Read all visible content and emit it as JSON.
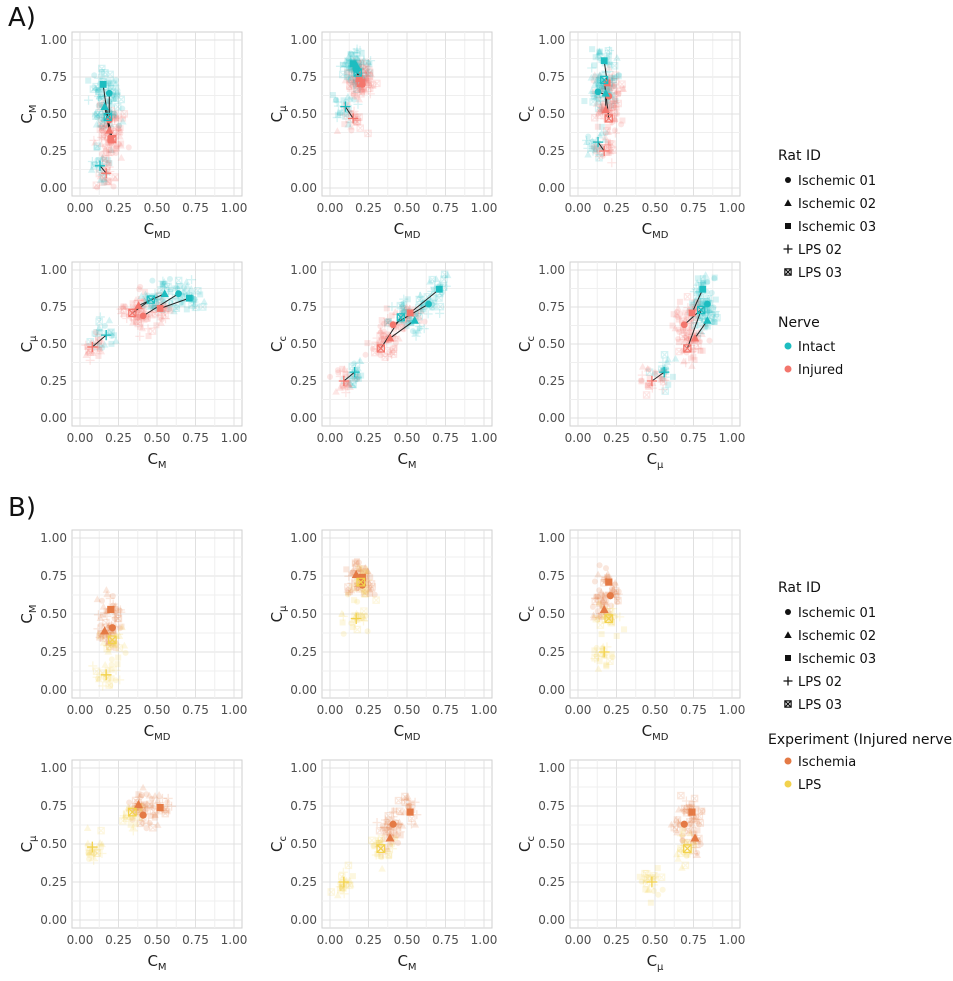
{
  "figure": {
    "panel_a_label": "A)",
    "panel_b_label": "B)"
  },
  "legend_a": {
    "rat_title": "Rat ID",
    "rats": [
      {
        "label": "Ischemic 01",
        "shape": "circle"
      },
      {
        "label": "Ischemic 02",
        "shape": "triangle"
      },
      {
        "label": "Ischemic 03",
        "shape": "square"
      },
      {
        "label": "LPS 02",
        "shape": "plus"
      },
      {
        "label": "LPS 03",
        "shape": "boxx"
      }
    ],
    "nerve_title": "Nerve",
    "nerves": [
      {
        "label": "Intact",
        "color": "#1dbdc0"
      },
      {
        "label": "Injured",
        "color": "#f3766d"
      }
    ]
  },
  "legend_b": {
    "rat_title": "Rat ID",
    "rats": [
      {
        "label": "Ischemic 01",
        "shape": "circle"
      },
      {
        "label": "Ischemic 02",
        "shape": "triangle"
      },
      {
        "label": "Ischemic 03",
        "shape": "square"
      },
      {
        "label": "LPS 02",
        "shape": "plus"
      },
      {
        "label": "LPS 03",
        "shape": "boxx"
      }
    ],
    "exp_title": "Experiment (Injured nerve)",
    "experiments": [
      {
        "label": "Ischemia",
        "color": "#e47a45"
      },
      {
        "label": "LPS",
        "color": "#f2d24d"
      }
    ]
  },
  "chart_data": {
    "type": "scatter",
    "xlim": [
      0,
      1
    ],
    "ylim": [
      0,
      1
    ],
    "ticks": [
      "0.00",
      "0.25",
      "0.50",
      "0.75",
      "1.00"
    ],
    "grid": true,
    "rats": [
      "Ischemic 01",
      "Ischemic 02",
      "Ischemic 03",
      "LPS 02",
      "LPS 03"
    ],
    "panels": [
      {
        "id": "A1",
        "group": "A",
        "x_main": "C",
        "x_sub": "MD",
        "y_main": "C",
        "y_sub": "M",
        "pairs": [
          [
            0.19,
            0.64,
            0.19,
            0.46
          ],
          [
            0.16,
            0.55,
            0.19,
            0.39
          ],
          [
            0.15,
            0.7,
            0.2,
            0.33
          ],
          [
            0.13,
            0.15,
            0.17,
            0.1
          ],
          [
            0.18,
            0.48,
            0.21,
            0.33
          ]
        ]
      },
      {
        "id": "A2",
        "group": "A",
        "x_main": "C",
        "x_sub": "MD",
        "y_main": "C",
        "y_sub": "μ",
        "pairs": [
          [
            0.17,
            0.8,
            0.21,
            0.7
          ],
          [
            0.17,
            0.83,
            0.19,
            0.74
          ],
          [
            0.15,
            0.84,
            0.19,
            0.74
          ],
          [
            0.1,
            0.55,
            0.15,
            0.47
          ],
          [
            0.18,
            0.78,
            0.2,
            0.71
          ]
        ]
      },
      {
        "id": "A3",
        "group": "A",
        "x_main": "C",
        "x_sub": "MD",
        "y_main": "C",
        "y_sub": "c",
        "pairs": [
          [
            0.13,
            0.65,
            0.2,
            0.62
          ],
          [
            0.18,
            0.64,
            0.18,
            0.53
          ],
          [
            0.17,
            0.86,
            0.19,
            0.71
          ],
          [
            0.13,
            0.31,
            0.17,
            0.25
          ],
          [
            0.17,
            0.73,
            0.2,
            0.47
          ]
        ]
      },
      {
        "id": "A4",
        "group": "A",
        "x_main": "C",
        "x_sub": "M",
        "y_main": "C",
        "y_sub": "μ",
        "pairs": [
          [
            0.64,
            0.84,
            0.41,
            0.69
          ],
          [
            0.55,
            0.84,
            0.38,
            0.76
          ],
          [
            0.71,
            0.81,
            0.52,
            0.74
          ],
          [
            0.17,
            0.56,
            0.08,
            0.48
          ],
          [
            0.46,
            0.8,
            0.34,
            0.71
          ]
        ]
      },
      {
        "id": "A5",
        "group": "A",
        "x_main": "C",
        "x_sub": "M",
        "y_main": "C",
        "y_sub": "c",
        "pairs": [
          [
            0.64,
            0.77,
            0.41,
            0.63
          ],
          [
            0.55,
            0.66,
            0.39,
            0.54
          ],
          [
            0.71,
            0.87,
            0.52,
            0.71
          ],
          [
            0.16,
            0.31,
            0.09,
            0.25
          ],
          [
            0.46,
            0.68,
            0.33,
            0.47
          ]
        ]
      },
      {
        "id": "A6",
        "group": "A",
        "x_main": "C",
        "x_sub": "μ",
        "y_main": "C",
        "y_sub": "c",
        "pairs": [
          [
            0.84,
            0.77,
            0.69,
            0.63
          ],
          [
            0.84,
            0.66,
            0.76,
            0.54
          ],
          [
            0.81,
            0.87,
            0.74,
            0.71
          ],
          [
            0.56,
            0.31,
            0.48,
            0.25
          ],
          [
            0.8,
            0.73,
            0.71,
            0.47
          ]
        ]
      },
      {
        "id": "B1",
        "group": "B",
        "x_main": "C",
        "x_sub": "MD",
        "y_main": "C",
        "y_sub": "M",
        "points": [
          [
            0.21,
            0.41,
            0
          ],
          [
            0.16,
            0.39,
            0
          ],
          [
            0.2,
            0.53,
            0
          ],
          [
            0.17,
            0.1,
            1
          ],
          [
            0.21,
            0.33,
            1
          ]
        ]
      },
      {
        "id": "B2",
        "group": "B",
        "x_main": "C",
        "x_sub": "MD",
        "y_main": "C",
        "y_sub": "μ",
        "points": [
          [
            0.21,
            0.69,
            0
          ],
          [
            0.17,
            0.76,
            0
          ],
          [
            0.21,
            0.74,
            0
          ],
          [
            0.17,
            0.47,
            1
          ],
          [
            0.2,
            0.71,
            1
          ]
        ]
      },
      {
        "id": "B3",
        "group": "B",
        "x_main": "C",
        "x_sub": "MD",
        "y_main": "C",
        "y_sub": "c",
        "points": [
          [
            0.21,
            0.62,
            0
          ],
          [
            0.17,
            0.53,
            0
          ],
          [
            0.2,
            0.71,
            0
          ],
          [
            0.17,
            0.25,
            1
          ],
          [
            0.2,
            0.47,
            1
          ]
        ]
      },
      {
        "id": "B4",
        "group": "B",
        "x_main": "C",
        "x_sub": "M",
        "y_main": "C",
        "y_sub": "μ",
        "points": [
          [
            0.41,
            0.69,
            0
          ],
          [
            0.38,
            0.76,
            0
          ],
          [
            0.52,
            0.74,
            0
          ],
          [
            0.08,
            0.48,
            1
          ],
          [
            0.34,
            0.71,
            1
          ]
        ]
      },
      {
        "id": "B5",
        "group": "B",
        "x_main": "C",
        "x_sub": "M",
        "y_main": "C",
        "y_sub": "c",
        "points": [
          [
            0.41,
            0.63,
            0
          ],
          [
            0.39,
            0.54,
            0
          ],
          [
            0.52,
            0.71,
            0
          ],
          [
            0.09,
            0.25,
            1
          ],
          [
            0.33,
            0.47,
            1
          ]
        ]
      },
      {
        "id": "B6",
        "group": "B",
        "x_main": "C",
        "x_sub": "μ",
        "y_main": "C",
        "y_sub": "c",
        "points": [
          [
            0.69,
            0.63,
            0
          ],
          [
            0.76,
            0.54,
            0
          ],
          [
            0.74,
            0.71,
            0
          ],
          [
            0.48,
            0.25,
            1
          ],
          [
            0.71,
            0.47,
            1
          ]
        ]
      }
    ],
    "colors": {
      "intact": "#1dbdc0",
      "injured": "#f3766d",
      "ischemia": "#e47a45",
      "lps": "#f2d24d"
    }
  }
}
